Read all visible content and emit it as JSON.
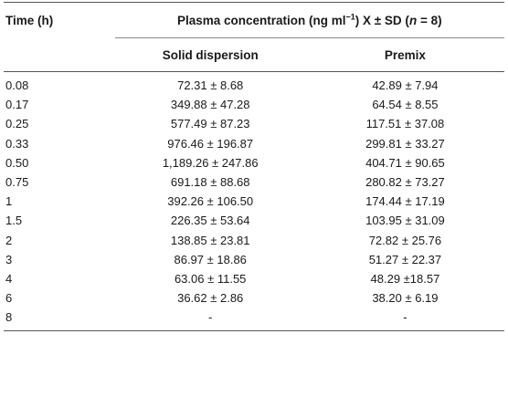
{
  "table": {
    "headers": {
      "time": "Time (h)",
      "group_prefix": "Plasma concentration (ng ml",
      "group_sup": "−1",
      "group_mid": ") X ± SD (",
      "group_n": "n",
      "group_suffix": " = 8)",
      "solid_dispersion": "Solid dispersion",
      "premix": "Premix"
    },
    "rows": [
      {
        "time": "0.08",
        "solid": "72.31 ± 8.68",
        "premix": "42.89 ± 7.94"
      },
      {
        "time": "0.17",
        "solid": "349.88 ± 47.28",
        "premix": "64.54 ± 8.55"
      },
      {
        "time": "0.25",
        "solid": "577.49 ± 87.23",
        "premix": "117.51 ± 37.08"
      },
      {
        "time": "0.33",
        "solid": "976.46 ± 196.87",
        "premix": "299.81 ± 33.27"
      },
      {
        "time": "0.50",
        "solid": "1,189.26 ± 247.86",
        "premix": "404.71 ± 90.65"
      },
      {
        "time": "0.75",
        "solid": "691.18 ± 88.68",
        "premix": "280.82 ± 73.27"
      },
      {
        "time": "1",
        "solid": "392.26 ± 106.50",
        "premix": "174.44 ± 17.19"
      },
      {
        "time": "1.5",
        "solid": "226.35 ± 53.64",
        "premix": "103.95 ± 31.09"
      },
      {
        "time": "2",
        "solid": "138.85 ± 23.81",
        "premix": "72.82 ± 25.76"
      },
      {
        "time": "3",
        "solid": "86.97 ± 18.86",
        "premix": "51.27 ± 22.37"
      },
      {
        "time": "4",
        "solid": "63.06 ± 11.55",
        "premix": "48.29 ±18.57"
      },
      {
        "time": "6",
        "solid": "36.62 ± 2.86",
        "premix": "38.20 ± 6.19"
      },
      {
        "time": "8",
        "solid": "-",
        "premix": "-"
      }
    ]
  }
}
